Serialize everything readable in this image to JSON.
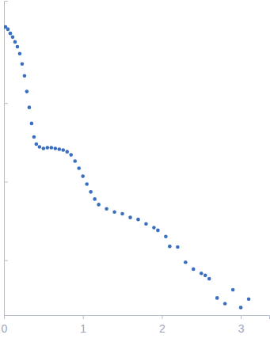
{
  "chart_data": {
    "type": "scatter",
    "color": "#3a6fc0",
    "marker": "circle",
    "log": "y",
    "tick_labels": "x",
    "xlim": [
      0,
      3.36
    ],
    "xticks": [
      0,
      1,
      2,
      3
    ],
    "ylim": [
      0.0002,
      2
    ],
    "yticks": [
      0.001,
      0.01,
      0.1
    ],
    "x": [
      0.02,
      0.05,
      0.08,
      0.11,
      0.14,
      0.17,
      0.2,
      0.23,
      0.26,
      0.29,
      0.32,
      0.35,
      0.38,
      0.41,
      0.45,
      0.5,
      0.55,
      0.6,
      0.65,
      0.7,
      0.75,
      0.8,
      0.85,
      0.9,
      0.95,
      1.0,
      1.05,
      1.1,
      1.15,
      1.2,
      1.3,
      1.4,
      1.5,
      1.6,
      1.7,
      1.8,
      1.9,
      1.95,
      2.05,
      2.1,
      2.2,
      2.3,
      2.4,
      2.5,
      2.55,
      2.6,
      2.7,
      2.8,
      2.9,
      3.0,
      3.1
    ],
    "values": [
      0.93,
      0.87,
      0.77,
      0.69,
      0.6,
      0.52,
      0.425,
      0.314,
      0.222,
      0.14,
      0.088,
      0.055,
      0.037,
      0.03,
      0.0277,
      0.0264,
      0.027,
      0.027,
      0.0264,
      0.0258,
      0.0252,
      0.024,
      0.0219,
      0.0182,
      0.0148,
      0.0117,
      0.0093,
      0.0074,
      0.006,
      0.0051,
      0.0045,
      0.0041,
      0.0039,
      0.0035,
      0.0033,
      0.0029,
      0.0026,
      0.0024,
      0.002,
      0.0015,
      0.00147,
      0.00094,
      0.00077,
      0.00068,
      0.00064,
      0.00058,
      0.00033,
      0.00028,
      0.00042,
      0.00025,
      0.00032
    ]
  }
}
